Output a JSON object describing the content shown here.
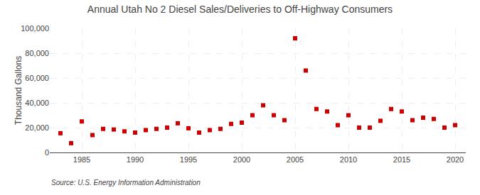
{
  "chart_data": {
    "type": "scatter",
    "title": "Annual Utah No 2 Diesel Sales/Deliveries to Off-Highway Consumers",
    "ylabel": "Thousand Gallons",
    "annotation": "Source: U.S. Energy Information Administration",
    "x": [
      1983,
      1984,
      1985,
      1986,
      1987,
      1988,
      1989,
      1990,
      1991,
      1992,
      1993,
      1994,
      1995,
      1996,
      1997,
      1998,
      1999,
      2000,
      2001,
      2002,
      2003,
      2004,
      2005,
      2006,
      2007,
      2008,
      2009,
      2010,
      2011,
      2012,
      2013,
      2014,
      2015,
      2016,
      2017,
      2018,
      2019,
      2020
    ],
    "values": [
      15500,
      7500,
      25000,
      14000,
      19000,
      18500,
      17000,
      16000,
      18000,
      19000,
      20000,
      23500,
      19500,
      16000,
      18000,
      19000,
      23000,
      24000,
      30000,
      38000,
      30000,
      26000,
      92000,
      66000,
      35000,
      33000,
      22000,
      30000,
      20000,
      20000,
      25500,
      35000,
      33000,
      26000,
      28000,
      27000,
      20000,
      22000
    ],
    "color": "#cc0000",
    "marker": "square",
    "xlim": [
      1982,
      2021
    ],
    "ylim": [
      0,
      100000
    ],
    "xticks": [
      1985,
      1990,
      1995,
      2000,
      2005,
      2010,
      2015,
      2020
    ],
    "yticks": [
      0,
      {
        "value": 20000,
        "label": "20,000"
      },
      {
        "value": 40000,
        "label": "40,000"
      },
      {
        "value": 60000,
        "label": "60,000"
      },
      {
        "value": 80000,
        "label": "80,000"
      },
      {
        "value": 100000,
        "label": "100,000"
      }
    ],
    "grid": true
  }
}
